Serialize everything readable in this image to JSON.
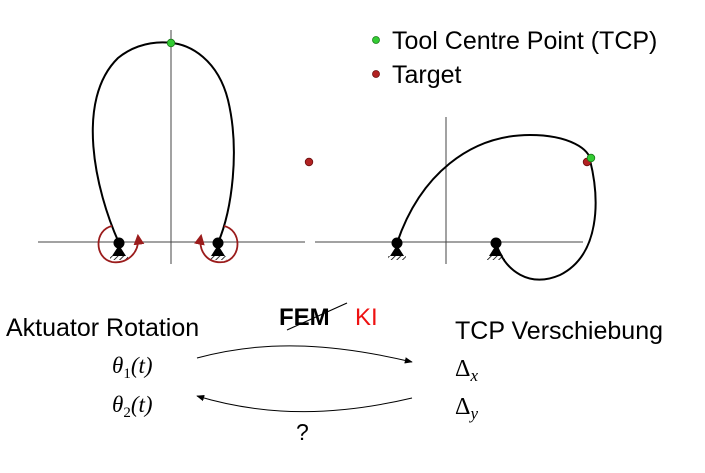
{
  "legend": {
    "items": [
      {
        "label": "Tool Centre Point (TCP)",
        "color": "#33cc33"
      },
      {
        "label": "Target",
        "color": "#b22222"
      }
    ]
  },
  "mapping": {
    "input_title": "Aktuator Rotation",
    "input_vars": [
      {
        "sym": "θ",
        "sub": "1",
        "arg": "(t)"
      },
      {
        "sym": "θ",
        "sub": "2",
        "arg": "(t)"
      }
    ],
    "output_title": "TCP Verschiebung",
    "output_vars": [
      {
        "sym": "Δ",
        "sub": "x"
      },
      {
        "sym": "Δ",
        "sub": "y"
      }
    ],
    "forward_method_struck": "FEM",
    "forward_method": "KI",
    "forward_method_color": "#ee1111",
    "inverse_method": "?"
  },
  "colors": {
    "actuator_arrow": "#9b1c1c",
    "line": "#000000",
    "axis": "#444444"
  }
}
